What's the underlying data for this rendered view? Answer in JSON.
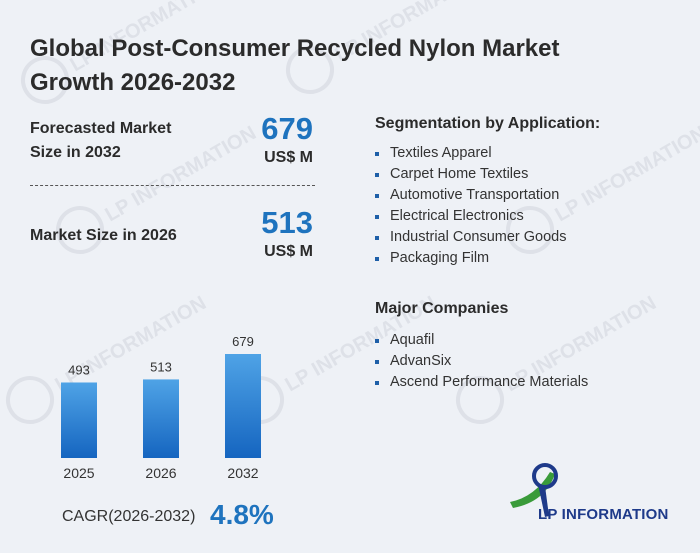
{
  "title": "Global Post-Consumer Recycled Nylon Market Growth 2026-2032",
  "forecast": {
    "label_line1": "Forecasted Market",
    "label_line2": "Size in 2032",
    "value": "679",
    "unit": "US$ M"
  },
  "current": {
    "label": "Market Size in 2026",
    "value": "513",
    "unit": "US$ M"
  },
  "segmentation": {
    "title": "Segmentation by Application:",
    "items": [
      "Textiles Apparel",
      "Carpet Home Textiles",
      "Automotive Transportation",
      "Electrical Electronics",
      "Industrial Consumer Goods",
      "Packaging Film"
    ]
  },
  "companies": {
    "title": "Major Companies",
    "items": [
      "Aquafil",
      "AdvanSix",
      "Ascend Performance Materials"
    ]
  },
  "cagr": {
    "label": "CAGR(2026-2032)",
    "value": "4.8%"
  },
  "logo": {
    "text": "LP INFORMATION"
  },
  "watermark": "LP INFORMATION",
  "colors": {
    "accent": "#1e73be",
    "bar_top": "#4fa3e6",
    "bar_bottom": "#1565c0",
    "logo_green": "#3a9b3a",
    "logo_navy": "#1e3a8a"
  },
  "chart_data": {
    "type": "bar",
    "categories": [
      "2025",
      "2026",
      "2032"
    ],
    "values": [
      493,
      513,
      679
    ],
    "title": "",
    "xlabel": "",
    "ylabel": "",
    "ylim": [
      0,
      679
    ],
    "grid": false
  }
}
